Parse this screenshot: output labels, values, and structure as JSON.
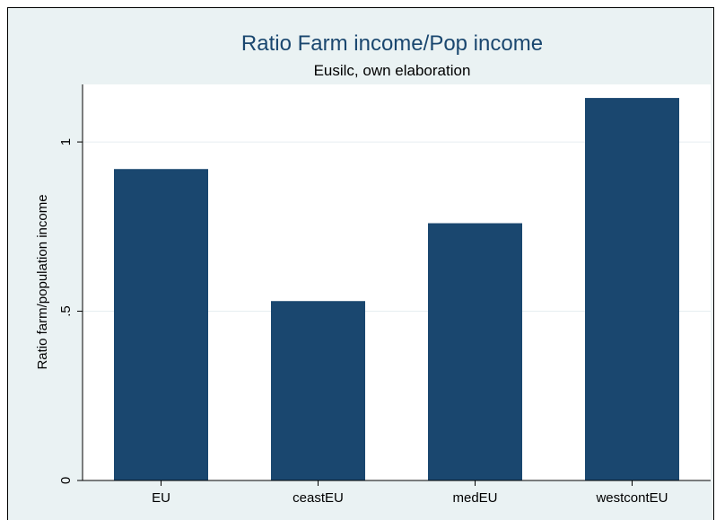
{
  "chart_data": {
    "type": "bar",
    "title": "Ratio Farm income/Pop income",
    "subtitle": "Eusilc, own elaboration",
    "xlabel": "",
    "ylabel": "Ratio farm/population income",
    "categories": [
      "EU",
      "ceastEU",
      "medEU",
      "westcontEU"
    ],
    "values": [
      0.92,
      0.53,
      0.76,
      1.13
    ],
    "yticks": [
      0,
      0.5,
      1
    ],
    "ytick_labels": [
      "0",
      ".5",
      "1"
    ],
    "ylim": [
      0,
      1.17
    ],
    "grid": true,
    "legend": "none",
    "bar_color": "#1a476f",
    "background_color": "#eaf2f3",
    "plot_color": "#ffffff",
    "title_color": "#1a476f"
  }
}
